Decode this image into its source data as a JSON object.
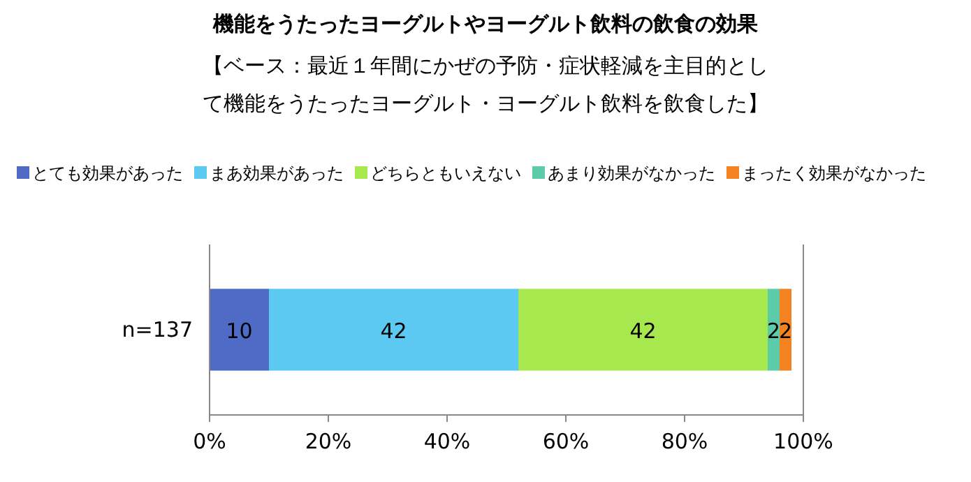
{
  "chart_data": {
    "type": "bar",
    "orientation": "horizontal",
    "stacked": true,
    "title": "機能をうたったヨーグルトやヨーグルト飲料の飲食の効果",
    "subtitle": "【ベース：最近１年間にかぜの予防・症状軽減を主目的として機能をうたったヨーグルト・ヨーグルト飲料を飲食した】",
    "categories": [
      "n=137"
    ],
    "series": [
      {
        "name": "とても効果があった",
        "color": "#4f6bc6",
        "values": [
          10
        ]
      },
      {
        "name": "まあ効果があった",
        "color": "#5bc9f2",
        "values": [
          42
        ]
      },
      {
        "name": "どちらともいえない",
        "color": "#a7e84f",
        "values": [
          42
        ]
      },
      {
        "name": "あまり効果がなかった",
        "color": "#5bcba9",
        "values": [
          2
        ]
      },
      {
        "name": "まったく効果がなかった",
        "color": "#f58220",
        "values": [
          2
        ]
      }
    ],
    "xlim": [
      0,
      100
    ],
    "xticks": [
      {
        "value": 0,
        "label": "0%"
      },
      {
        "value": 20,
        "label": "20%"
      },
      {
        "value": 40,
        "label": "40%"
      },
      {
        "value": 60,
        "label": "60%"
      },
      {
        "value": 80,
        "label": "80%"
      },
      {
        "value": 100,
        "label": "100%"
      }
    ],
    "data_labels": true,
    "legend": "top",
    "grid": false
  }
}
